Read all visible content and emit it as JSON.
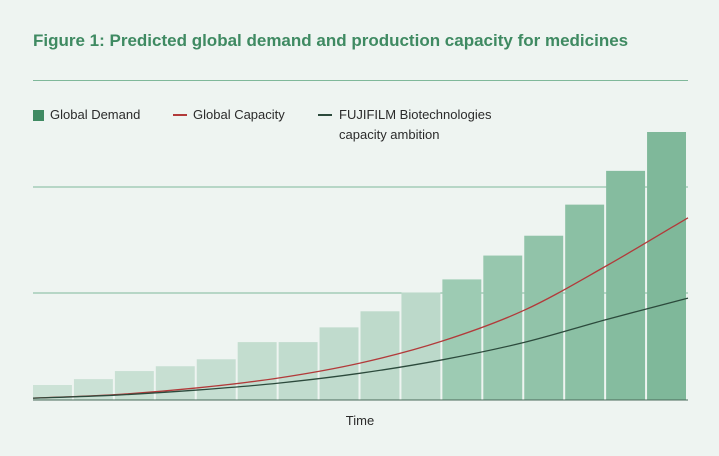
{
  "title": "Figure 1: Predicted global demand and production capacity for medicines",
  "legend": {
    "demand": "Global Demand",
    "capacity": "Global Capacity",
    "fuji": "FUJIFILM Biotechnologies capacity ambition"
  },
  "colors": {
    "title": "#3f8a62",
    "demand_early": "#c3ddd0",
    "demand_late": "#7fb89a",
    "capacity": "#b23a3a",
    "fuji": "#2c4a3c",
    "grid": "#7fb89a"
  },
  "chart_data": {
    "type": "bar",
    "title": "Figure 1: Predicted global demand and production capacity for medicines",
    "xlabel": "Time",
    "ylabel": "",
    "ylim": [
      0,
      100
    ],
    "grid": true,
    "legend_position": "top-left",
    "bar_series": {
      "name": "Global Demand",
      "values": [
        5.6,
        7.8,
        10.8,
        12.6,
        15.2,
        21.6,
        21.6,
        27.1,
        33.1,
        40.1,
        45.0,
        53.9,
        61.3,
        72.9,
        85.5,
        100.0
      ]
    },
    "line_series": [
      {
        "name": "Global Capacity",
        "x": [
          0,
          2,
          4,
          6,
          8,
          10,
          12,
          14,
          16
        ],
        "y": [
          0.7,
          2.0,
          4.5,
          8.2,
          13.8,
          22.0,
          33.5,
          50.0,
          68.0
        ]
      },
      {
        "name": "FUJIFILM Biotechnologies capacity ambition",
        "x": [
          0,
          2,
          4,
          6,
          8,
          10,
          12,
          14,
          16
        ],
        "y": [
          0.7,
          1.8,
          3.7,
          6.3,
          10.0,
          15.0,
          21.5,
          30.0,
          38.0
        ]
      }
    ]
  }
}
